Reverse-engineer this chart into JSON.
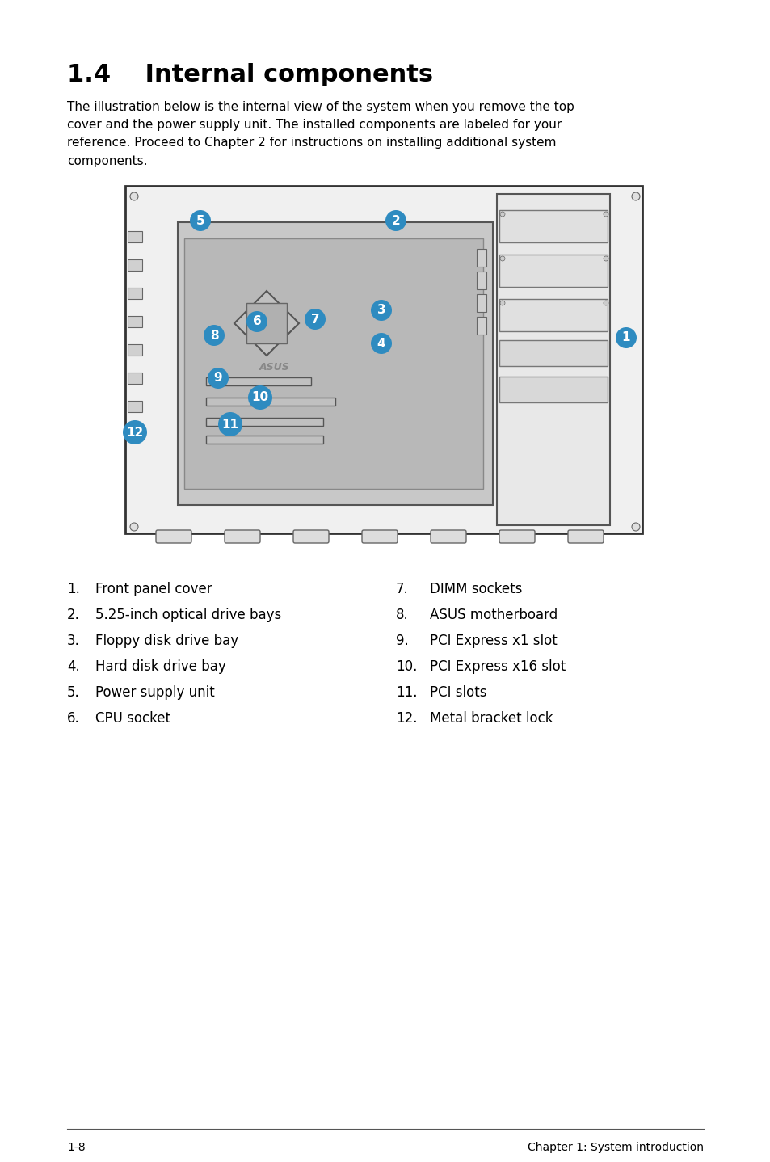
{
  "title": "1.4    Internal components",
  "body_text": "The illustration below is the internal view of the system when you remove the top\ncover and the power supply unit. The installed components are labeled for your\nreference. Proceed to Chapter 2 for instructions on installing additional system\ncomponents.",
  "left_items": [
    "1.\tFront panel cover",
    "2.\t5.25-inch optical drive bays",
    "3.\tFloppy disk drive bay",
    "4.\tHard disk drive bay",
    "5.\tPower supply unit",
    "6.\tCPU socket"
  ],
  "right_items": [
    "7.\tDIMM sockets",
    "8.\tASUS motherboard",
    "9.\tPCI Express x1 slot",
    "10.\tPCI Express x16 slot",
    "11.\tPCI slots",
    "12.\tMetal bracket lock"
  ],
  "footer_left": "1-8",
  "footer_right": "Chapter 1: System introduction",
  "bg_color": "#ffffff",
  "text_color": "#000000",
  "badge_color": "#2e8bc0",
  "badge_text_color": "#ffffff",
  "diagram_bg": "#d8d8d8",
  "case_outline": "#000000"
}
